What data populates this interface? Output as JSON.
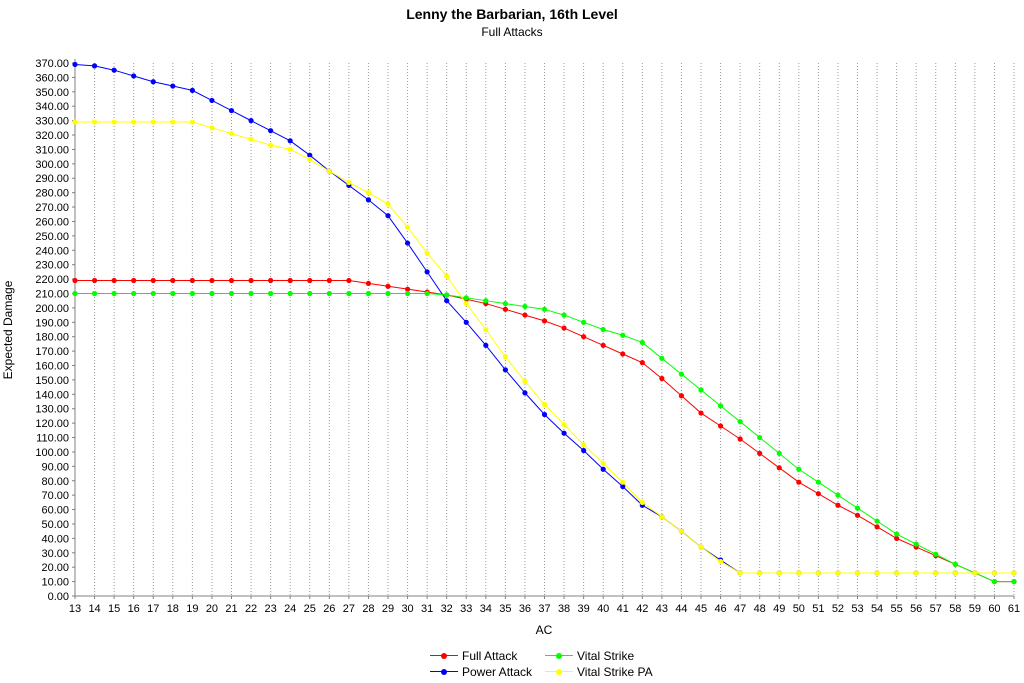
{
  "chart_data": {
    "type": "line",
    "title": "Lenny the Barbarian, 16th Level",
    "subtitle": "Full Attacks",
    "xlabel": "AC",
    "ylabel": "Expected Damage",
    "x": [
      13,
      14,
      15,
      16,
      17,
      18,
      19,
      20,
      21,
      22,
      23,
      24,
      25,
      26,
      27,
      28,
      29,
      30,
      31,
      32,
      33,
      34,
      35,
      36,
      37,
      38,
      39,
      40,
      41,
      42,
      43,
      44,
      45,
      46,
      47,
      48,
      49,
      50,
      51,
      52,
      53,
      54,
      55,
      56,
      57,
      58,
      59,
      60,
      61
    ],
    "ylim": [
      0,
      370
    ],
    "yticks": [
      "0.00",
      "10.00",
      "20.00",
      "30.00",
      "40.00",
      "50.00",
      "60.00",
      "70.00",
      "80.00",
      "90.00",
      "100.00",
      "110.00",
      "120.00",
      "130.00",
      "140.00",
      "150.00",
      "160.00",
      "170.00",
      "180.00",
      "190.00",
      "200.00",
      "210.00",
      "220.00",
      "230.00",
      "240.00",
      "250.00",
      "260.00",
      "270.00",
      "280.00",
      "290.00",
      "300.00",
      "310.00",
      "320.00",
      "330.00",
      "340.00",
      "350.00",
      "360.00",
      "370.00"
    ],
    "grid": "vertical dotted",
    "legend_position": "bottom",
    "series": [
      {
        "name": "Full Attack",
        "color": "#ff0000",
        "values": [
          219,
          219,
          219,
          219,
          219,
          219,
          219,
          219,
          219,
          219,
          219,
          219,
          219,
          219,
          219,
          217,
          215,
          213,
          211,
          209,
          206,
          203,
          199,
          195,
          191,
          186,
          180,
          174,
          168,
          162,
          151,
          139,
          127,
          118,
          109,
          99,
          89,
          79,
          71,
          63,
          56,
          48,
          40,
          34,
          28,
          22,
          16,
          10,
          10
        ]
      },
      {
        "name": "Power Attack",
        "color": "#0000ff",
        "values": [
          369,
          368,
          365,
          361,
          357,
          354,
          351,
          344,
          337,
          330,
          323,
          316,
          306,
          295,
          285,
          275,
          264,
          245,
          225,
          205,
          190,
          174,
          157,
          141,
          126,
          113,
          101,
          88,
          76,
          63,
          55,
          45,
          34,
          25,
          16,
          16,
          16,
          16,
          16,
          16,
          16,
          16,
          16,
          16,
          16,
          16,
          16,
          16,
          16
        ]
      },
      {
        "name": "Vital Strike",
        "color": "#00ff00",
        "values": [
          210,
          210,
          210,
          210,
          210,
          210,
          210,
          210,
          210,
          210,
          210,
          210,
          210,
          210,
          210,
          210,
          210,
          210,
          210,
          209,
          207,
          205,
          203,
          201,
          199,
          195,
          190,
          185,
          181,
          176,
          165,
          154,
          143,
          132,
          121,
          110,
          99,
          88,
          79,
          70,
          61,
          52,
          43,
          36,
          29,
          22,
          16,
          10,
          10
        ]
      },
      {
        "name": "Vital Strike PA",
        "color": "#ffff00",
        "values": [
          329,
          329,
          329,
          329,
          329,
          329,
          329,
          325,
          321,
          317,
          313,
          310,
          303,
          295,
          287,
          280,
          272,
          256,
          238,
          222,
          203,
          185,
          166,
          149,
          133,
          119,
          105,
          92,
          79,
          65,
          55,
          45,
          34,
          24,
          16,
          16,
          16,
          16,
          16,
          16,
          16,
          16,
          16,
          16,
          16,
          16,
          16,
          16,
          16
        ]
      }
    ]
  }
}
